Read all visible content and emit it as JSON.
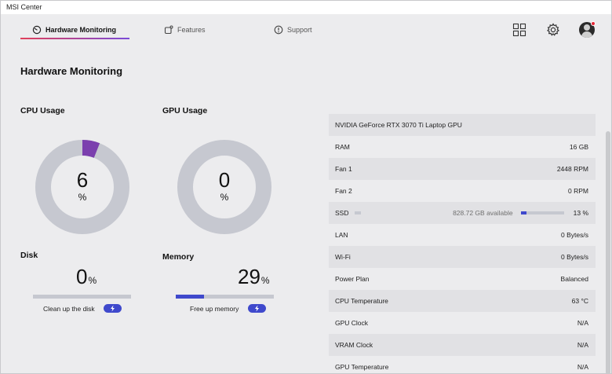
{
  "app": {
    "title": "MSI Center"
  },
  "nav": {
    "tabs": [
      {
        "label": "Hardware Monitoring",
        "icon": "gauge-icon",
        "active": true
      },
      {
        "label": "Features",
        "icon": "features-icon",
        "active": false
      },
      {
        "label": "Support",
        "icon": "support-icon",
        "active": false
      }
    ],
    "icons": [
      "grid-icon",
      "gear-icon",
      "avatar"
    ]
  },
  "page": {
    "title": "Hardware Monitoring"
  },
  "cpu": {
    "label": "CPU Usage",
    "value": "6",
    "unit": "%",
    "percent": 6,
    "color": "#7b3fae",
    "track_color": "#c6c8d0"
  },
  "gpu": {
    "label": "GPU Usage",
    "value": "0",
    "unit": "%",
    "percent": 0,
    "color": "#7b3fae",
    "track_color": "#c6c8d0"
  },
  "disk": {
    "label": "Disk",
    "value": "0",
    "unit": "%",
    "percent": 0,
    "action": "Clean up the disk"
  },
  "memory": {
    "label": "Memory",
    "value": "29",
    "unit": "%",
    "percent": 29,
    "action": "Free up memory"
  },
  "info": {
    "rows": [
      {
        "label": "NVIDIA GeForce RTX 3070 Ti Laptop GPU",
        "value": ""
      },
      {
        "label": "RAM",
        "value": "16 GB"
      },
      {
        "label": "Fan 1",
        "value": "2448 RPM"
      },
      {
        "label": "Fan 2",
        "value": "0 RPM"
      },
      {
        "label": "SSD",
        "value": "13 %",
        "available": "828.72 GB available",
        "percent": 13
      },
      {
        "label": "LAN",
        "value": "0 Bytes/s"
      },
      {
        "label": "Wi-Fi",
        "value": "0 Bytes/s"
      },
      {
        "label": "Power Plan",
        "value": "Balanced"
      },
      {
        "label": "CPU Temperature",
        "value": "63 °C"
      },
      {
        "label": "GPU Clock",
        "value": "N/A"
      },
      {
        "label": "VRAM Clock",
        "value": "N/A"
      },
      {
        "label": "GPU Temperature",
        "value": "N/A"
      }
    ]
  },
  "colors": {
    "accent": "#3f49cc",
    "usage_arc": "#7b3fae",
    "notification": "#e32636"
  }
}
